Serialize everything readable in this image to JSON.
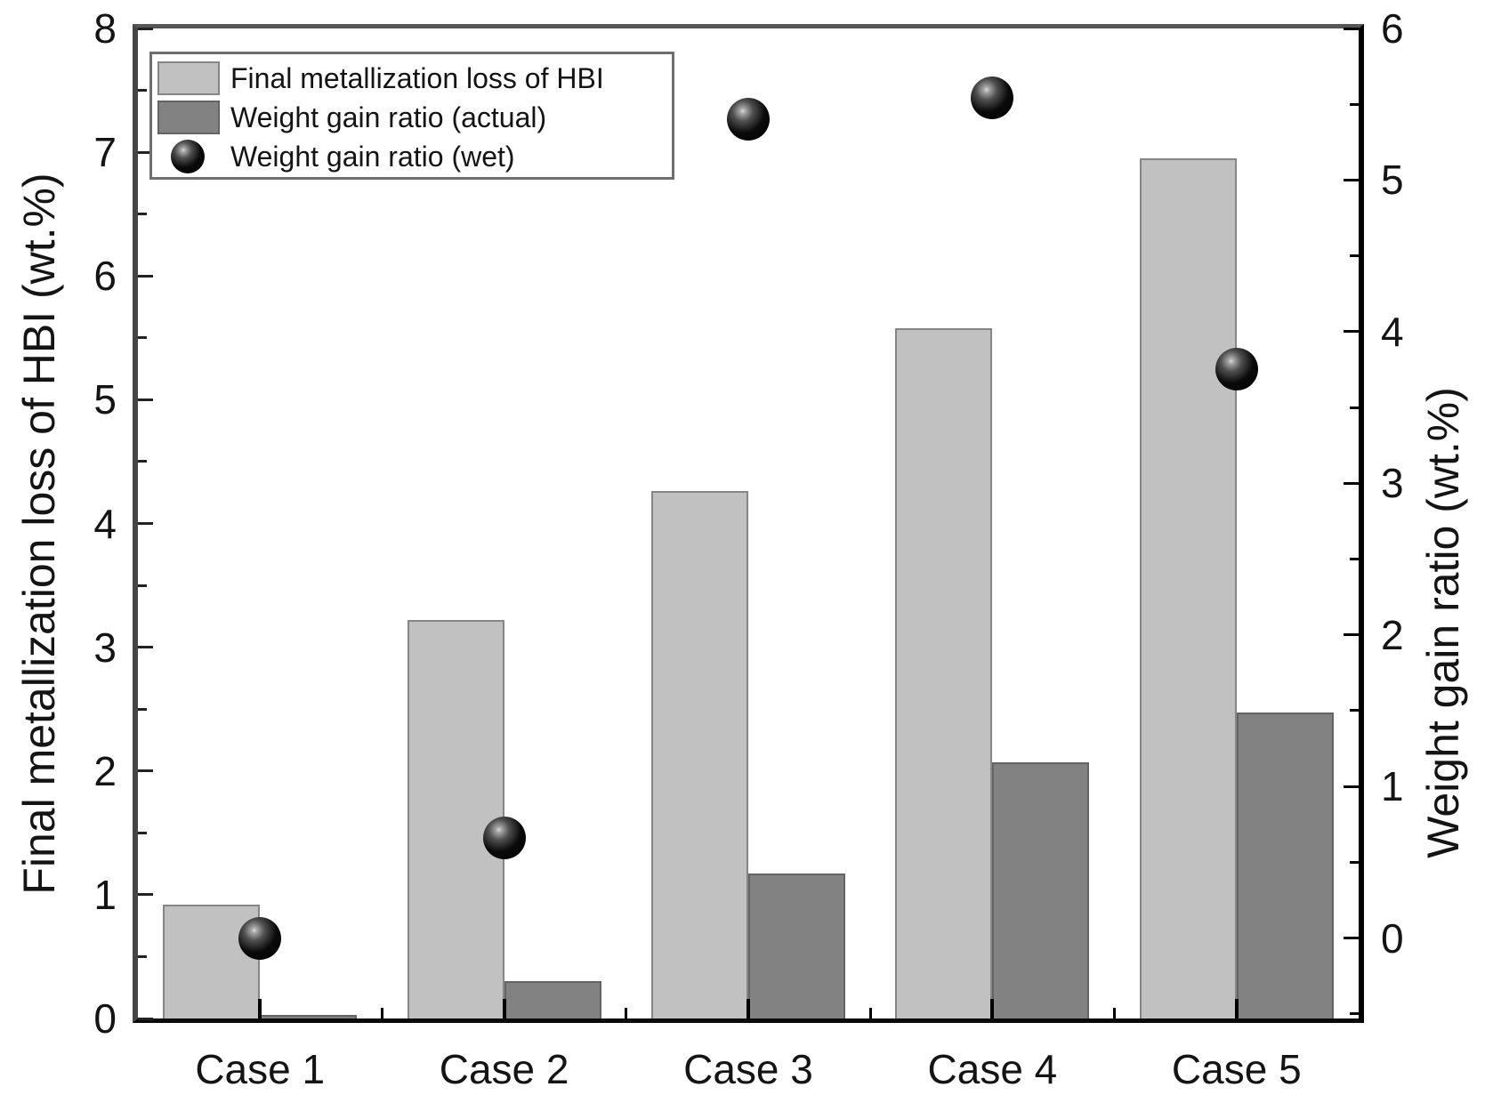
{
  "chart_data": {
    "type": "bar",
    "title": "",
    "categories": [
      "Case 1",
      "Case 2",
      "Case 3",
      "Case 4",
      "Case 5"
    ],
    "series": [
      {
        "name": "Final metallization loss of HBI",
        "kind": "bar",
        "axis": "left",
        "values": [
          0.92,
          3.22,
          4.26,
          5.58,
          6.95
        ],
        "fill": "#c1c1c1",
        "border": "#868686"
      },
      {
        "name": "Weight gain ratio (actual)",
        "kind": "bar",
        "axis": "left",
        "values": [
          0.03,
          0.3,
          1.17,
          2.07,
          2.47
        ],
        "fill": "#828282",
        "border": "#646464"
      },
      {
        "name": "Weight gain ratio (wet)",
        "kind": "scatter",
        "axis": "right",
        "values": [
          0.0,
          0.66,
          5.4,
          5.54,
          3.75
        ],
        "marker": "sphere",
        "color": "#000000"
      }
    ],
    "left_axis": {
      "label": "Final metallization loss of HBI (wt.%)",
      "min": 0,
      "max": 8,
      "major_tick": 1,
      "minor_tick": 0.5,
      "tick_labels": [
        "0",
        "1",
        "2",
        "3",
        "4",
        "5",
        "6",
        "7",
        "8"
      ]
    },
    "right_axis": {
      "label": "Weight gain ratio (wt.%)",
      "min": -0.53,
      "max": 6,
      "major_tick": 1,
      "minor_tick": 0.5,
      "tick_labels": [
        "0",
        "1",
        "2",
        "3",
        "4",
        "5",
        "6"
      ]
    },
    "x_axis": {
      "tick_labels": [
        "Case 1",
        "Case 2",
        "Case 3",
        "Case 4",
        "Case 5"
      ]
    },
    "legend": {
      "position": "top-left",
      "entries": [
        "Final metallization loss of HBI",
        "Weight gain ratio (actual)",
        "Weight gain ratio (wet)"
      ]
    },
    "grid": false,
    "background": "#ffffff"
  }
}
